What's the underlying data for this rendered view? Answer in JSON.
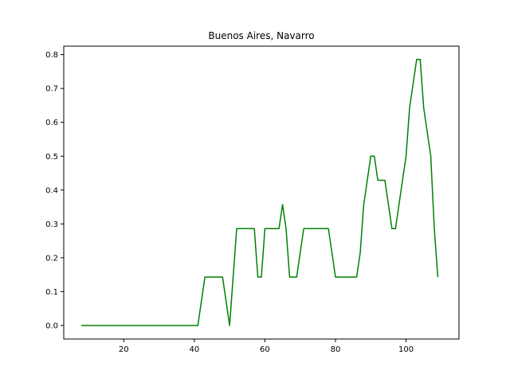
{
  "chart_data": {
    "type": "line",
    "title": "Buenos Aires, Navarro",
    "xlabel": "",
    "ylabel": "",
    "xlim": [
      3,
      115
    ],
    "ylim": [
      -0.04,
      0.825
    ],
    "xticks": [
      20,
      40,
      60,
      80,
      100
    ],
    "yticks": [
      0.0,
      0.1,
      0.2,
      0.3,
      0.4,
      0.5,
      0.6,
      0.7,
      0.8
    ],
    "ytick_labels": [
      "0.0",
      "0.1",
      "0.2",
      "0.3",
      "0.4",
      "0.5",
      "0.6",
      "0.7",
      "0.8"
    ],
    "grid": false,
    "series": [
      {
        "color": "#008000",
        "x": [
          8,
          10,
          12,
          14,
          16,
          18,
          20,
          22,
          24,
          26,
          28,
          30,
          32,
          34,
          36,
          38,
          40,
          41,
          43,
          44,
          46,
          48,
          50,
          52,
          53,
          54,
          56,
          57,
          58,
          59,
          60,
          62,
          64,
          65,
          66,
          67,
          69,
          71,
          73,
          75,
          77,
          78,
          80,
          82,
          84,
          86,
          87,
          88,
          90,
          91,
          92,
          94,
          95,
          96,
          97,
          99,
          100,
          101,
          102,
          103,
          104,
          105,
          106,
          107,
          108,
          109
        ],
        "values": [
          0,
          0,
          0,
          0,
          0,
          0,
          0,
          0,
          0,
          0,
          0,
          0,
          0,
          0,
          0,
          0,
          0,
          0,
          0.143,
          0.143,
          0.143,
          0.143,
          0,
          0.286,
          0.286,
          0.286,
          0.286,
          0.286,
          0.143,
          0.143,
          0.286,
          0.286,
          0.286,
          0.357,
          0.286,
          0.143,
          0.143,
          0.286,
          0.286,
          0.286,
          0.286,
          0.286,
          0.143,
          0.143,
          0.143,
          0.143,
          0.214,
          0.357,
          0.5,
          0.5,
          0.429,
          0.429,
          0.357,
          0.286,
          0.286,
          0.429,
          0.5,
          0.643,
          0.714,
          0.786,
          0.786,
          0.643,
          0.571,
          0.5,
          0.286,
          0.143
        ]
      }
    ]
  },
  "colors": {
    "line": "#008000",
    "axes": "#000000",
    "background": "#ffffff"
  }
}
